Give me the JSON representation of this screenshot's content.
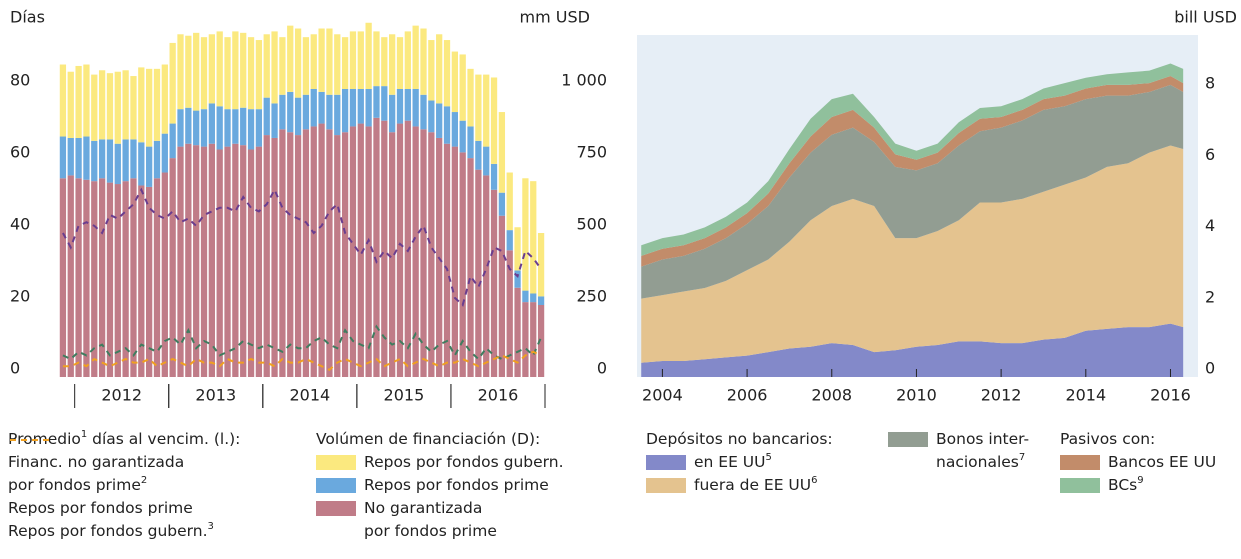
{
  "chart_data": [
    {
      "type": "bar",
      "stacked": true,
      "ylabel": "Días",
      "y2label": "mm USD",
      "ylim": [
        0,
        95
      ],
      "yticks": [
        0,
        20,
        40,
        60,
        80
      ],
      "y2lim": [
        0,
        1187.5
      ],
      "y2ticks": [
        0,
        250,
        500,
        750,
        {
          "value": 1000,
          "label": "1 000"
        }
      ],
      "grid": false,
      "categories": [
        null,
        null,
        null,
        null,
        null,
        null,
        null,
        null,
        "2012",
        null,
        null,
        null,
        null,
        null,
        null,
        null,
        null,
        null,
        null,
        null,
        "2013",
        null,
        null,
        null,
        null,
        null,
        null,
        null,
        null,
        null,
        null,
        null,
        "2014",
        null,
        null,
        null,
        null,
        null,
        null,
        null,
        null,
        null,
        null,
        null,
        "2015",
        null,
        null,
        null,
        null,
        null,
        null,
        null,
        null,
        null,
        null,
        null,
        "2016",
        null,
        null,
        null,
        null,
        null
      ],
      "legend_titles": [
        {
          "text": "Promedio",
          "footnote": "1",
          "text2": " días al vencim. (l.):"
        },
        {
          "text": "Volúmen de financiación (D):"
        }
      ],
      "series": [
        {
          "name": "Financ. no garantizada\npor fondos prime",
          "footnote": "2",
          "type": "line",
          "axis": "y",
          "color": "#6a3d8f",
          "dash": true,
          "values": [
            40,
            36,
            42,
            43,
            42,
            40,
            45,
            44,
            46,
            48,
            52,
            47,
            45,
            44,
            46,
            43,
            44,
            42,
            45,
            46,
            47,
            47,
            46,
            50,
            47,
            46,
            48,
            52,
            47,
            45,
            44,
            43,
            40,
            42,
            46,
            48,
            40,
            37,
            34,
            38,
            32,
            35,
            33,
            37,
            35,
            39,
            42,
            36,
            33,
            30,
            22,
            20,
            28,
            25,
            30,
            36,
            35,
            30,
            28,
            35,
            33,
            30
          ]
        },
        {
          "name": "Repos por fondos prime",
          "type": "line",
          "axis": "y",
          "color": "#3f7d5f",
          "dash": true,
          "values": [
            6,
            5,
            7,
            6,
            8,
            9,
            6,
            7,
            8,
            6,
            9,
            8,
            7,
            10,
            11,
            9,
            13,
            8,
            10,
            9,
            6,
            7,
            8,
            10,
            9,
            8,
            9,
            8,
            7,
            9,
            8,
            8,
            10,
            11,
            9,
            8,
            13,
            10,
            9,
            8,
            14,
            11,
            9,
            10,
            8,
            12,
            9,
            7,
            9,
            10,
            6,
            10,
            7,
            5,
            8,
            6,
            5,
            6,
            7,
            8,
            6,
            11
          ]
        },
        {
          "name": "Repos por fondos gubern.",
          "footnote": "3",
          "type": "line",
          "axis": "y",
          "color": "#f0a020",
          "dash": true,
          "values": [
            3,
            3,
            4,
            3,
            5,
            4,
            3,
            4,
            5,
            4,
            4,
            5,
            3,
            4,
            5,
            4,
            3,
            5,
            4,
            4,
            3,
            5,
            4,
            4,
            5,
            4,
            4,
            3,
            5,
            4,
            4,
            5,
            4,
            3,
            2,
            4,
            5,
            4,
            3,
            4,
            5,
            3,
            4,
            5,
            3,
            4,
            5,
            4,
            3,
            4,
            4,
            5,
            4,
            3,
            4,
            5,
            6,
            5,
            4,
            6,
            7,
            6
          ]
        },
        {
          "name": "Repos por fondos gubern.",
          "type": "bar",
          "axis": "y2",
          "color": "#fbe97f",
          "values": [
            250,
            230,
            250,
            250,
            230,
            240,
            230,
            250,
            240,
            220,
            260,
            270,
            250,
            240,
            280,
            260,
            250,
            270,
            250,
            240,
            260,
            250,
            270,
            260,
            250,
            240,
            220,
            250,
            200,
            230,
            240,
            200,
            190,
            220,
            230,
            210,
            180,
            200,
            200,
            230,
            190,
            170,
            210,
            180,
            200,
            220,
            230,
            210,
            240,
            230,
            210,
            230,
            200,
            230,
            250,
            300,
            280,
            200,
            150,
            390,
            390,
            220
          ]
        },
        {
          "name": "Repos por fondos prime",
          "type": "bar",
          "axis": "y2",
          "color": "#6aa9de",
          "values": [
            145,
            130,
            140,
            150,
            140,
            135,
            150,
            140,
            145,
            135,
            150,
            140,
            130,
            135,
            120,
            130,
            125,
            120,
            130,
            140,
            150,
            130,
            120,
            130,
            140,
            130,
            130,
            120,
            120,
            140,
            130,
            120,
            130,
            110,
            120,
            140,
            150,
            130,
            120,
            130,
            110,
            120,
            130,
            120,
            110,
            130,
            120,
            110,
            120,
            130,
            120,
            110,
            110,
            100,
            100,
            90,
            80,
            70,
            60,
            40,
            30,
            30
          ]
        },
        {
          "name": "No garantizada\npor fondos prime",
          "type": "bar",
          "axis": "y2",
          "color": "#c07c88",
          "values": [
            690,
            700,
            690,
            685,
            680,
            690,
            675,
            670,
            680,
            690,
            665,
            660,
            690,
            710,
            760,
            800,
            810,
            805,
            800,
            810,
            790,
            800,
            810,
            805,
            790,
            800,
            840,
            830,
            860,
            850,
            840,
            860,
            870,
            880,
            860,
            840,
            850,
            870,
            880,
            870,
            900,
            890,
            850,
            880,
            890,
            870,
            860,
            850,
            830,
            810,
            800,
            780,
            760,
            720,
            700,
            650,
            560,
            440,
            310,
            260,
            260,
            250
          ]
        }
      ]
    },
    {
      "type": "area",
      "stacked": true,
      "ylabel": "bill USD",
      "xlim": [
        2003.4,
        2016.65
      ],
      "xticks": [
        2004,
        2006,
        2008,
        2010,
        2012,
        2014,
        2016
      ],
      "ylim": [
        0,
        9.6
      ],
      "yticks": [
        0,
        2,
        4,
        6,
        8
      ],
      "grid": false,
      "background": "#e6eef6",
      "x": [
        2003.5,
        2004,
        2004.5,
        2005,
        2005.5,
        2006,
        2006.5,
        2007,
        2007.5,
        2008,
        2008.5,
        2009,
        2009.5,
        2010,
        2010.5,
        2011,
        2011.5,
        2012,
        2012.5,
        2013,
        2013.5,
        2014,
        2014.5,
        2015,
        2015.5,
        2016,
        2016.3
      ],
      "legend_titles": [
        "Depósitos no bancarios:",
        "Pasivos con:"
      ],
      "series": [
        {
          "name": "en EE UU",
          "footnote": "5",
          "color": "#8389c9",
          "values": [
            0.4,
            0.45,
            0.45,
            0.5,
            0.55,
            0.6,
            0.7,
            0.8,
            0.85,
            0.95,
            0.9,
            0.7,
            0.75,
            0.85,
            0.9,
            1.0,
            1.0,
            0.95,
            0.95,
            1.05,
            1.1,
            1.3,
            1.35,
            1.4,
            1.4,
            1.5,
            1.4
          ]
        },
        {
          "name": "fuera de EE UU",
          "footnote": "6",
          "color": "#e4c38f",
          "values": [
            1.8,
            1.85,
            1.95,
            2.0,
            2.15,
            2.4,
            2.6,
            3.0,
            3.55,
            3.85,
            4.1,
            4.1,
            3.15,
            3.05,
            3.2,
            3.4,
            3.9,
            3.95,
            4.05,
            4.15,
            4.3,
            4.3,
            4.55,
            4.6,
            4.9,
            5.0,
            5.0
          ]
        },
        {
          "name": "Bonos inter-\nnacionales",
          "footnote": "7",
          "color": "#929d92",
          "values": [
            0.9,
            1.0,
            1.0,
            1.1,
            1.2,
            1.3,
            1.5,
            1.8,
            1.9,
            2.0,
            2.0,
            1.8,
            2.0,
            1.9,
            1.9,
            2.1,
            2.0,
            2.1,
            2.2,
            2.3,
            2.2,
            2.2,
            2.0,
            1.9,
            1.7,
            1.7,
            1.6
          ]
        },
        {
          "name": "Bancos EE UU",
          "color": "#c28c6a",
          "values": [
            0.3,
            0.3,
            0.3,
            0.3,
            0.3,
            0.3,
            0.35,
            0.4,
            0.45,
            0.5,
            0.5,
            0.4,
            0.35,
            0.3,
            0.3,
            0.35,
            0.35,
            0.3,
            0.3,
            0.3,
            0.3,
            0.3,
            0.3,
            0.3,
            0.25,
            0.25,
            0.25
          ]
        },
        {
          "name": "BCs",
          "footnote": "9",
          "color": "#90c09c",
          "values": [
            0.3,
            0.3,
            0.3,
            0.3,
            0.3,
            0.3,
            0.35,
            0.4,
            0.5,
            0.5,
            0.45,
            0.3,
            0.3,
            0.25,
            0.25,
            0.3,
            0.3,
            0.3,
            0.3,
            0.3,
            0.35,
            0.3,
            0.3,
            0.35,
            0.35,
            0.35,
            0.4
          ]
        }
      ]
    }
  ]
}
